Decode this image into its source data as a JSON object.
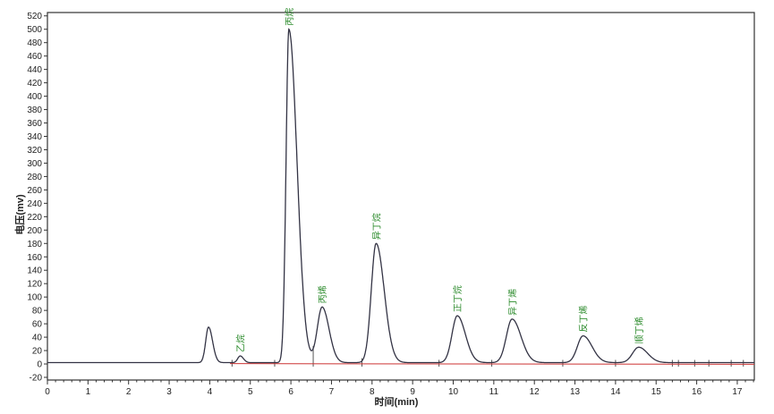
{
  "chart_data": {
    "type": "line",
    "xlabel": "时间(min)",
    "ylabel": "电压(mv)",
    "xlim": [
      0,
      17.42
    ],
    "ylim": [
      -24,
      525
    ],
    "xticks": [
      0,
      1,
      2,
      3,
      4,
      5,
      6,
      7,
      8,
      9,
      10,
      11,
      12,
      13,
      14,
      15,
      16,
      17
    ],
    "yticks": [
      -20,
      0,
      20,
      40,
      60,
      80,
      100,
      120,
      140,
      160,
      180,
      200,
      220,
      240,
      260,
      280,
      300,
      320,
      340,
      360,
      380,
      400,
      420,
      440,
      460,
      480,
      500,
      520
    ],
    "grid": false,
    "baseline": 2,
    "peaks": [
      {
        "label": "",
        "rt": 3.97,
        "height": 55
      },
      {
        "label": "乙烷",
        "rt": 4.75,
        "height": 12
      },
      {
        "label": "丙烷",
        "rt": 5.95,
        "height": 500
      },
      {
        "label": "丙烯",
        "rt": 6.77,
        "height": 85
      },
      {
        "label": "异丁烷",
        "rt": 8.1,
        "height": 180
      },
      {
        "label": "正丁烷",
        "rt": 10.1,
        "height": 72
      },
      {
        "label": "异丁烯",
        "rt": 11.45,
        "height": 67
      },
      {
        "label": "反丁烯",
        "rt": 13.2,
        "height": 42
      },
      {
        "label": "顺丁烯",
        "rt": 14.57,
        "height": 25
      }
    ],
    "integration_marks": [
      4.55,
      5.6,
      6.55,
      7.75,
      9.65,
      10.95,
      12.7,
      14.0,
      15.4,
      15.55,
      15.95,
      16.3,
      16.85,
      17.15
    ],
    "colors": {
      "signal": "#333344",
      "baseline": "#cc3333",
      "labels": "#2a8a2a"
    }
  }
}
